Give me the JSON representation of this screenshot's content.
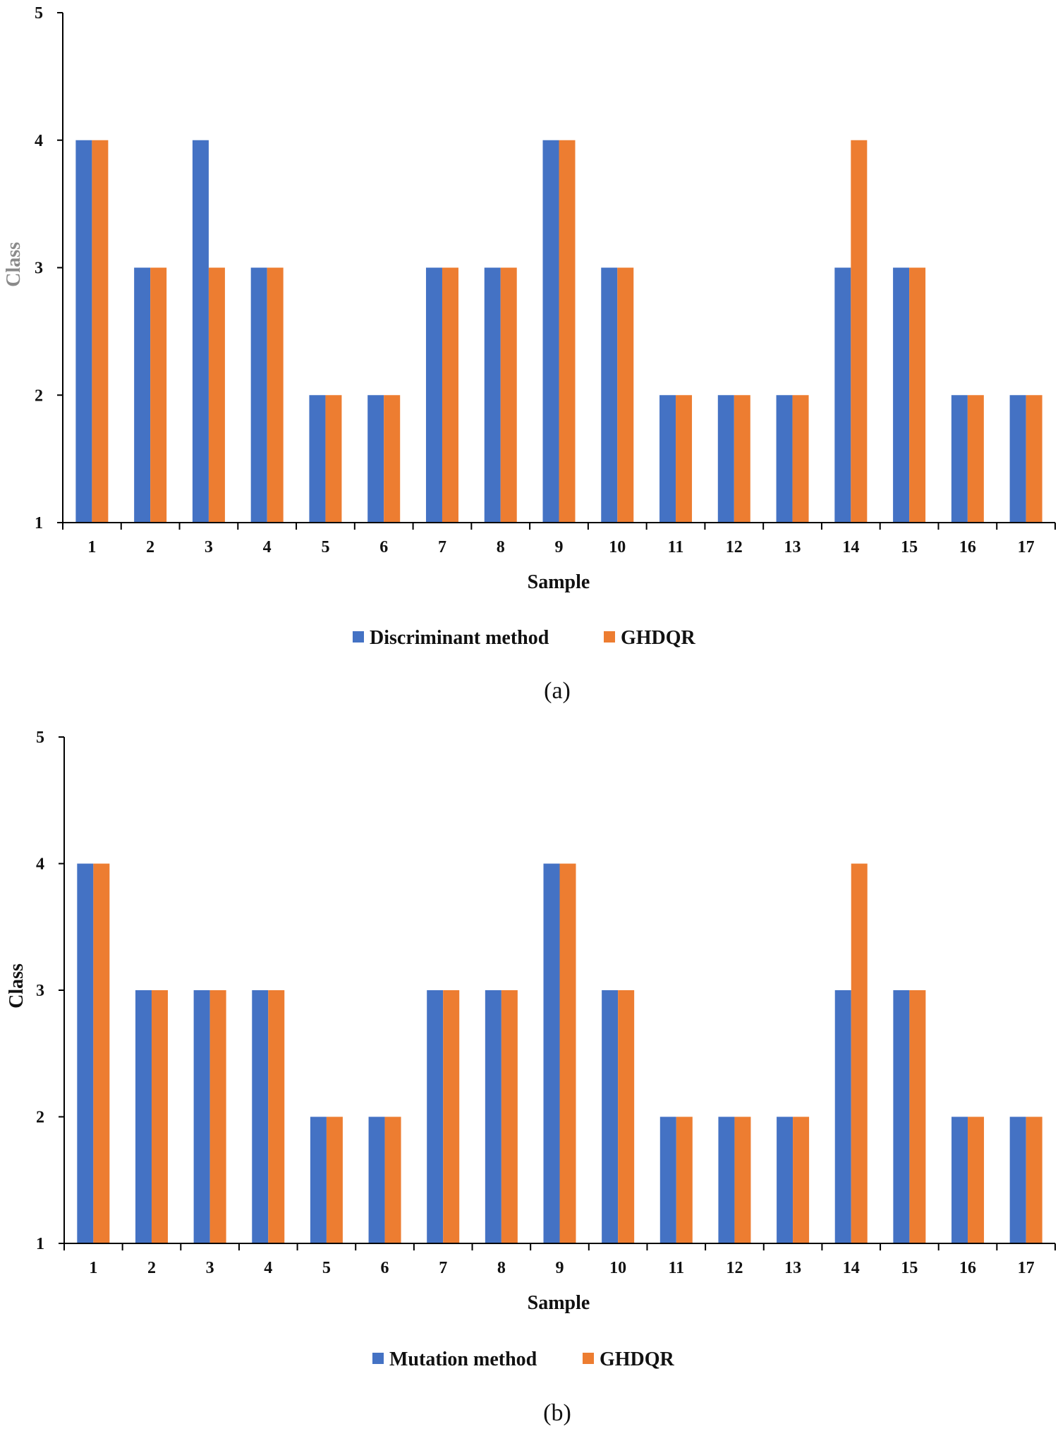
{
  "chart_data": [
    {
      "type": "bar",
      "categories": [
        "1",
        "2",
        "3",
        "4",
        "5",
        "6",
        "7",
        "8",
        "9",
        "10",
        "11",
        "12",
        "13",
        "14",
        "15",
        "16",
        "17"
      ],
      "series": [
        {
          "name": "Discriminant method",
          "color": "#4472C4",
          "values": [
            4,
            3,
            4,
            3,
            2,
            2,
            3,
            3,
            4,
            3,
            2,
            2,
            2,
            3,
            3,
            2,
            2
          ]
        },
        {
          "name": "GHDQR",
          "color": "#ED7D31",
          "values": [
            4,
            3,
            3,
            3,
            2,
            2,
            3,
            3,
            4,
            3,
            2,
            2,
            2,
            4,
            3,
            2,
            2
          ]
        }
      ],
      "xlabel": "Sample",
      "ylabel": "Class",
      "ylim": [
        1,
        5
      ],
      "yticks": [
        "1",
        "2",
        "3",
        "4",
        "5"
      ],
      "caption": "(a)",
      "legend": "bottom"
    },
    {
      "type": "bar",
      "categories": [
        "1",
        "2",
        "3",
        "4",
        "5",
        "6",
        "7",
        "8",
        "9",
        "10",
        "11",
        "12",
        "13",
        "14",
        "15",
        "16",
        "17"
      ],
      "series": [
        {
          "name": "Mutation method",
          "color": "#4472C4",
          "values": [
            4,
            3,
            3,
            3,
            2,
            2,
            3,
            3,
            4,
            3,
            2,
            2,
            2,
            3,
            3,
            2,
            2
          ]
        },
        {
          "name": "GHDQR",
          "color": "#ED7D31",
          "values": [
            4,
            3,
            3,
            3,
            2,
            2,
            3,
            3,
            4,
            3,
            2,
            2,
            2,
            4,
            3,
            2,
            2
          ]
        }
      ],
      "xlabel": "Sample",
      "ylabel": "Class",
      "ylim": [
        1,
        5
      ],
      "yticks": [
        "1",
        "2",
        "3",
        "4",
        "5"
      ],
      "caption": "(b)",
      "legend": "bottom"
    }
  ]
}
